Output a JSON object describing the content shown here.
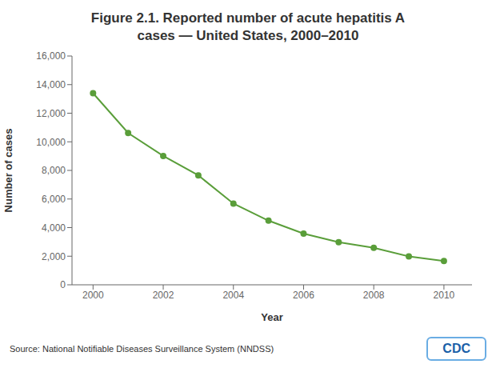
{
  "chart_data": {
    "type": "line",
    "title": "Figure 2.1. Reported number of acute hepatitis A",
    "subtitle": "cases — United States, 2000–2010",
    "x_label": "Year",
    "y_label": "Number of cases",
    "x": [
      2000,
      2001,
      2002,
      2003,
      2004,
      2005,
      2006,
      2007,
      2008,
      2009,
      2010
    ],
    "values": [
      13397,
      10616,
      9012,
      7653,
      5683,
      4488,
      3579,
      2979,
      2585,
      1987,
      1670
    ],
    "color": "#5a9e3a",
    "marker": "circle",
    "xlim": [
      1999.4,
      2010.8
    ],
    "xticks": [
      2000,
      2002,
      2004,
      2006,
      2008,
      2010
    ],
    "ylim": [
      0,
      16000
    ],
    "yticks": [
      0,
      {
        "value": 2000,
        "label": "2,000"
      },
      {
        "value": 4000,
        "label": "4,000"
      },
      {
        "value": 6000,
        "label": "6,000"
      },
      {
        "value": 8000,
        "label": "8,000"
      },
      {
        "value": 10000,
        "label": "10,000"
      },
      {
        "value": 12000,
        "label": "12,000"
      },
      {
        "value": 14000,
        "label": "14,000"
      },
      {
        "value": 16000,
        "label": "16,000"
      }
    ],
    "grid": false,
    "annotations": [
      "Source: National Notifiable Diseases Surveillance System (NNDSS)",
      "CDC"
    ]
  }
}
